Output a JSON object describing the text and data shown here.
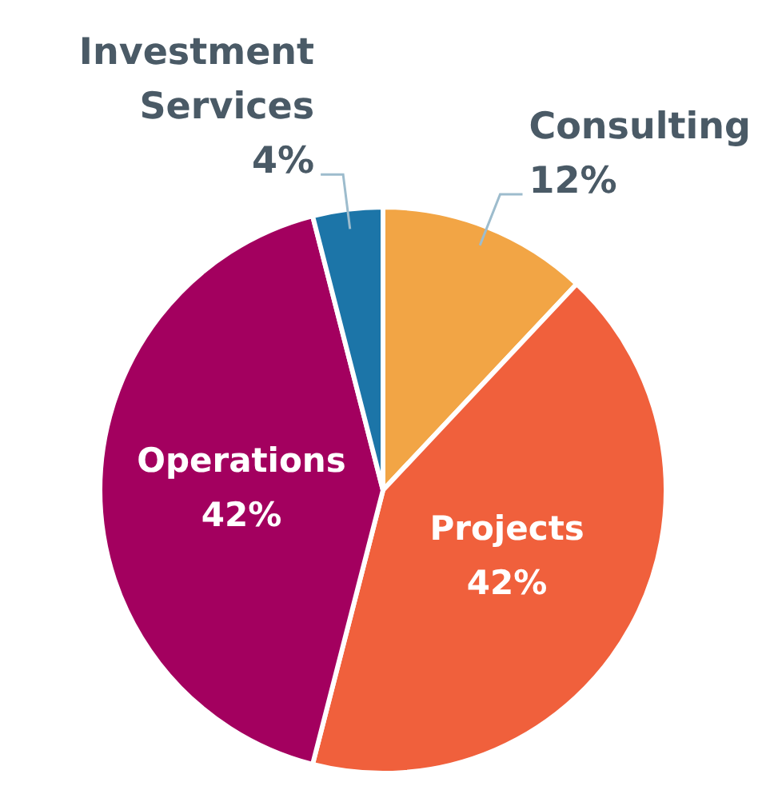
{
  "chart_data": {
    "type": "pie",
    "categories": [
      "Consulting",
      "Projects",
      "Operations",
      "Investment Services"
    ],
    "values": [
      12,
      42,
      42,
      4
    ],
    "value_labels": [
      "12%",
      "42%",
      "42%",
      "4%"
    ],
    "colors": [
      "#f2a545",
      "#f0603c",
      "#a3005f",
      "#1c75a8"
    ],
    "legend": false
  }
}
